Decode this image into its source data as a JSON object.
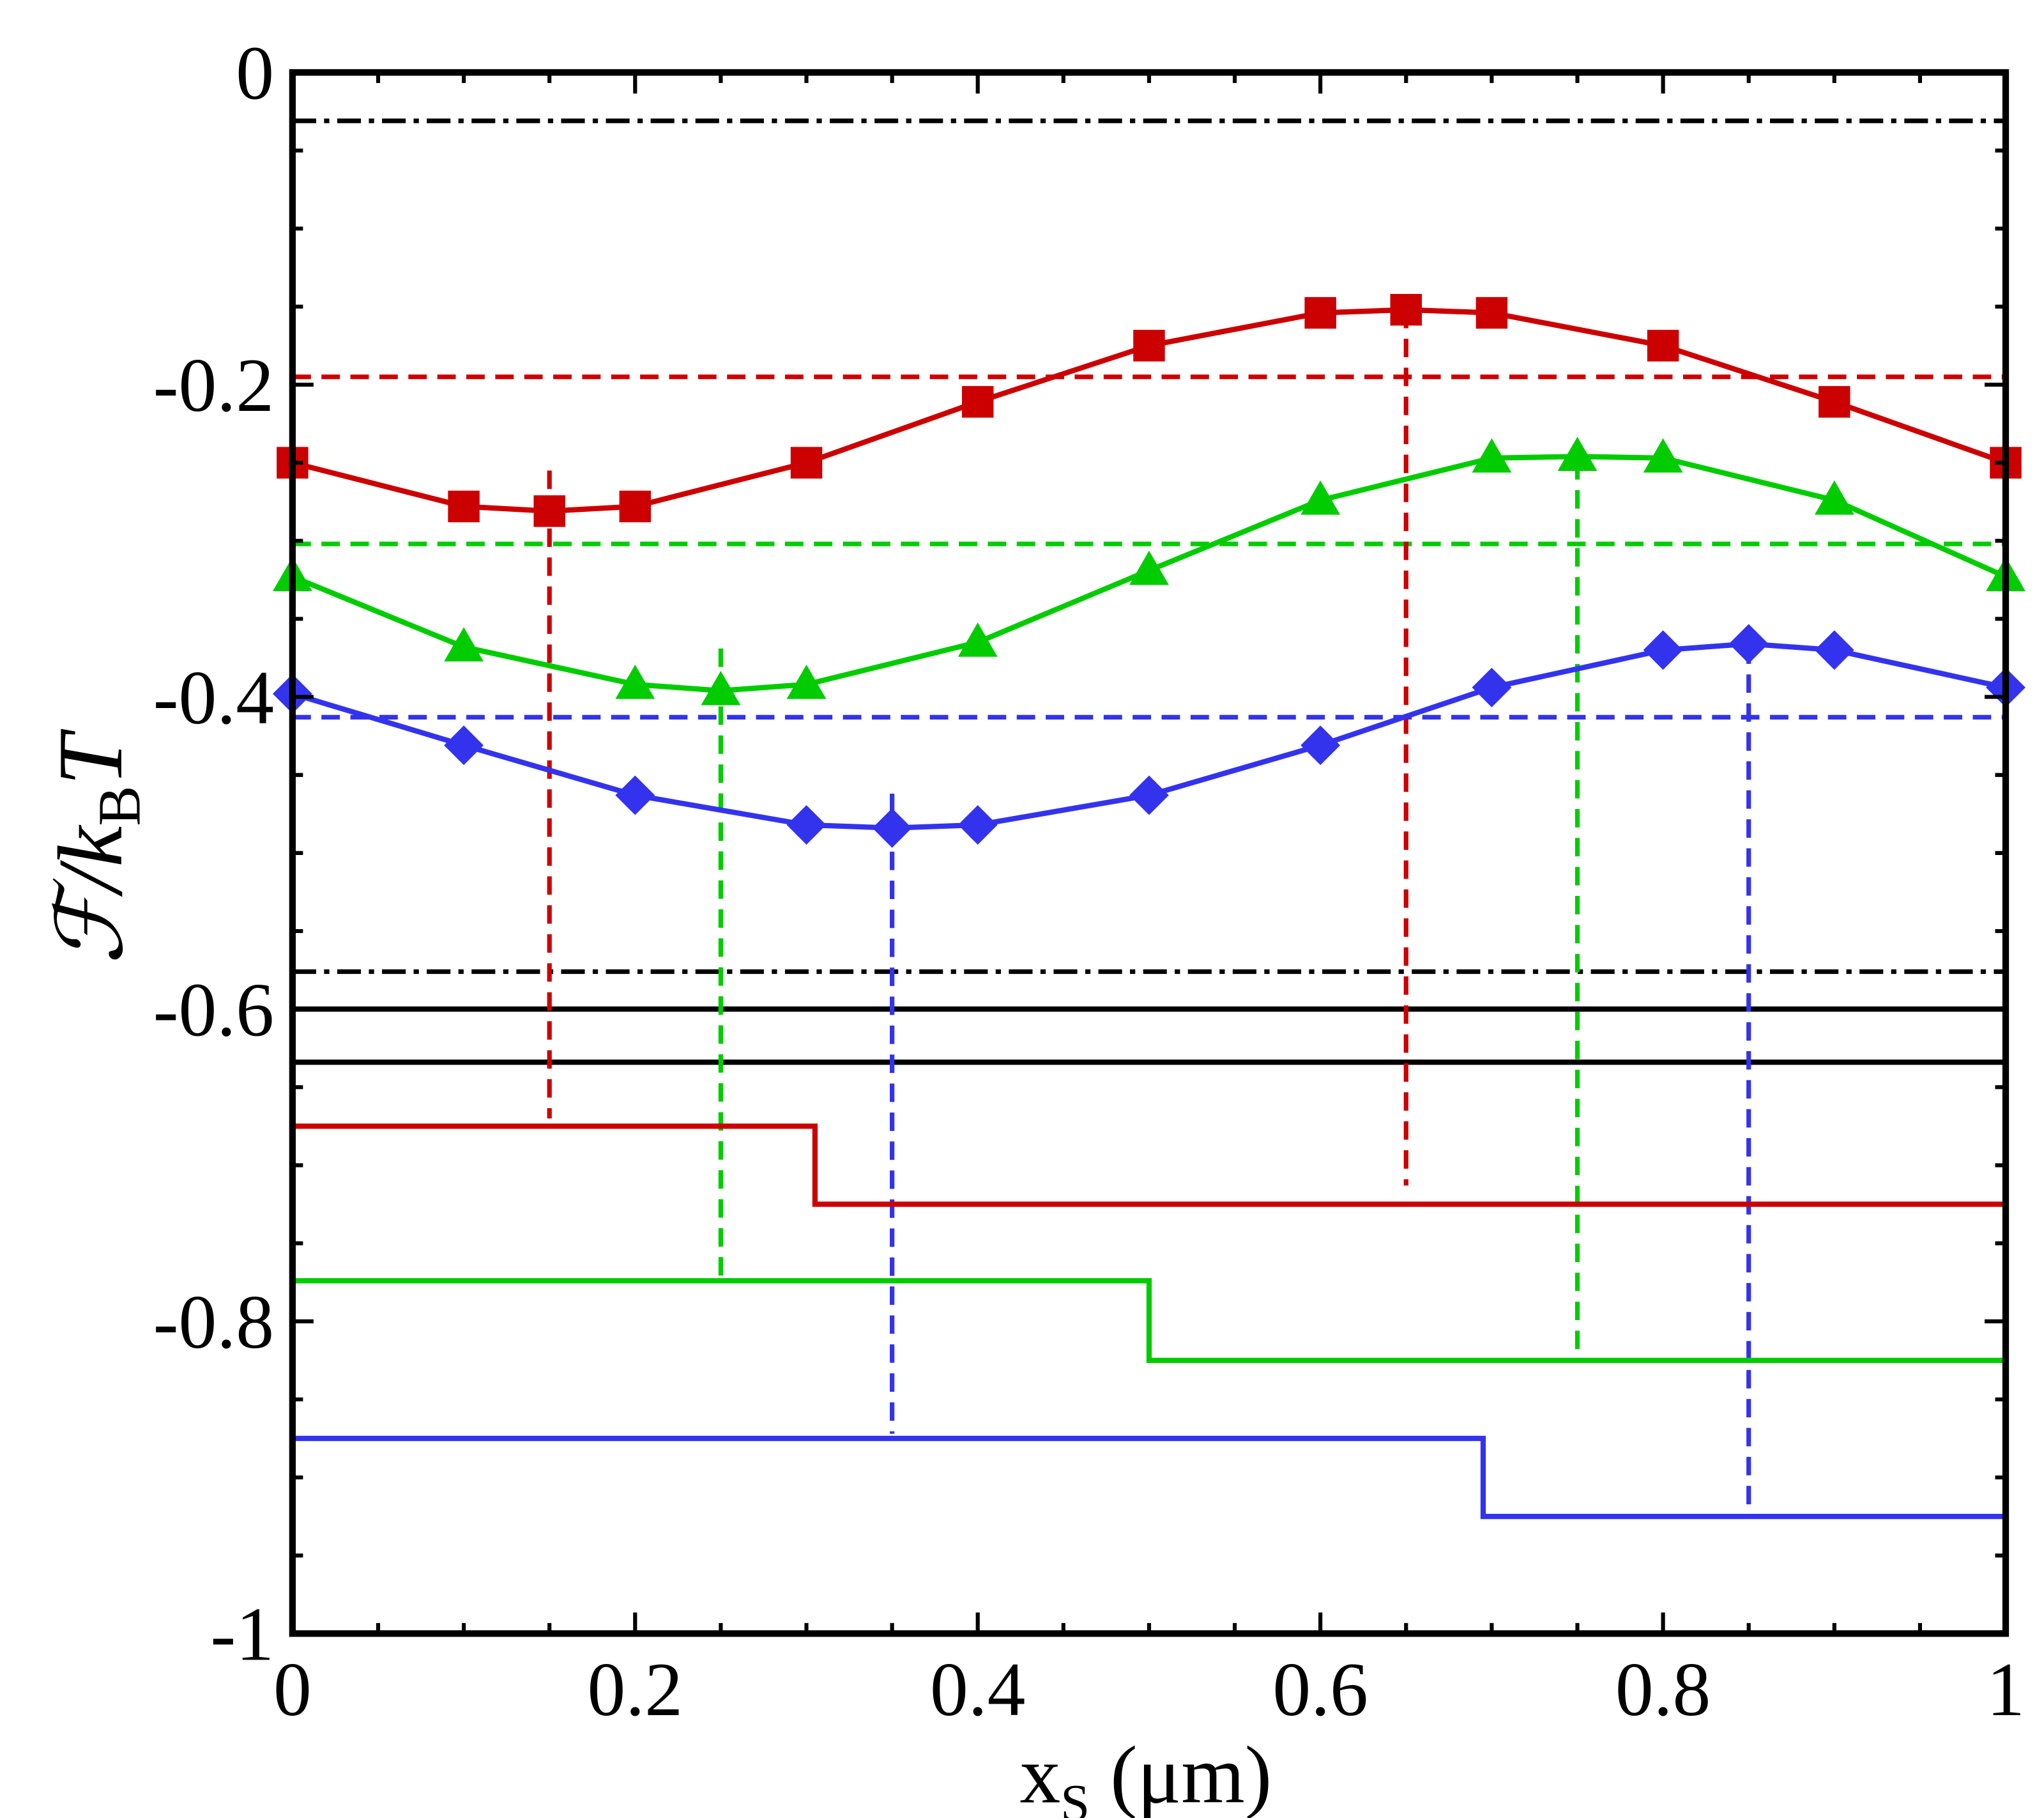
{
  "chart_data": {
    "type": "line",
    "xlabel": {
      "main": "x",
      "sub": "S",
      "tail": " (μm)"
    },
    "ylabel": {
      "main": "ℱ/k",
      "sub": "B",
      "tail": "T"
    },
    "xlim": [
      0,
      1
    ],
    "ylim": [
      -1,
      0
    ],
    "xticks": [
      0,
      0.2,
      0.4,
      0.6,
      0.8,
      1
    ],
    "yticks": [
      -1,
      -0.8,
      -0.6,
      -0.4,
      -0.2,
      0
    ],
    "xticks_minor": [
      0.05,
      0.1,
      0.15,
      0.25,
      0.3,
      0.35,
      0.45,
      0.5,
      0.55,
      0.65,
      0.7,
      0.75,
      0.85,
      0.9,
      0.95
    ],
    "yticks_minor": [
      -0.95,
      -0.9,
      -0.85,
      -0.75,
      -0.7,
      -0.65,
      -0.55,
      -0.5,
      -0.45,
      -0.35,
      -0.3,
      -0.25,
      -0.15,
      -0.1,
      -0.05
    ],
    "series": [
      {
        "color": "#cc0000",
        "marker": "square",
        "x": [
          0,
          0.1,
          0.15,
          0.2,
          0.3,
          0.4,
          0.5,
          0.6,
          0.65,
          0.7,
          0.8,
          0.9,
          1
        ],
        "values": [
          -0.25,
          -0.278,
          -0.281,
          -0.278,
          -0.25,
          -0.211,
          -0.175,
          -0.154,
          -0.152,
          -0.154,
          -0.175,
          -0.211,
          -0.25
        ]
      },
      {
        "color": "#00cc00",
        "marker": "triangle",
        "x": [
          0,
          0.1,
          0.2,
          0.25,
          0.3,
          0.4,
          0.5,
          0.6,
          0.7,
          0.75,
          0.8,
          0.9,
          1
        ],
        "values": [
          -0.323,
          -0.368,
          -0.392,
          -0.396,
          -0.392,
          -0.365,
          -0.319,
          -0.274,
          -0.247,
          -0.246,
          -0.247,
          -0.274,
          -0.323
        ]
      },
      {
        "color": "#3333ee",
        "marker": "diamond",
        "x": [
          0,
          0.1,
          0.2,
          0.3,
          0.35,
          0.4,
          0.5,
          0.6,
          0.7,
          0.8,
          0.85,
          0.9,
          1
        ],
        "values": [
          -0.398,
          -0.431,
          -0.463,
          -0.482,
          -0.484,
          -0.482,
          -0.463,
          -0.431,
          -0.394,
          -0.37,
          -0.366,
          -0.37,
          -0.394
        ]
      },
      {
        "color": "#cc0000",
        "step": true,
        "x": [
          0,
          0.305,
          1
        ],
        "values": [
          -0.675,
          -0.725,
          -0.725
        ]
      },
      {
        "color": "#00cc00",
        "step": true,
        "x": [
          0,
          0.5,
          1
        ],
        "values": [
          -0.774,
          -0.825,
          -0.825
        ]
      },
      {
        "color": "#3333ee",
        "step": true,
        "x": [
          0,
          0.695,
          1
        ],
        "values": [
          -0.875,
          -0.925,
          -0.925
        ]
      }
    ],
    "hlines": [
      {
        "y": -0.031,
        "color": "#000000",
        "style": "dashdot"
      },
      {
        "y": -0.576,
        "color": "#000000",
        "style": "dashdot"
      },
      {
        "y": -0.6,
        "color": "#000000",
        "style": "solid"
      },
      {
        "y": -0.634,
        "color": "#000000",
        "style": "solid"
      },
      {
        "y": -0.195,
        "color": "#cc0000",
        "style": "dashed"
      },
      {
        "y": -0.302,
        "color": "#00cc00",
        "style": "dashed"
      },
      {
        "y": -0.413,
        "color": "#3333ee",
        "style": "dashed"
      }
    ],
    "vlines": [
      {
        "x": 0.15,
        "y": [
          -0.255,
          -0.67
        ],
        "color": "#cc0000"
      },
      {
        "x": 0.65,
        "y": [
          -0.152,
          -0.713
        ],
        "color": "#cc0000"
      },
      {
        "x": 0.25,
        "y": [
          -0.369,
          -0.772
        ],
        "color": "#00cc00"
      },
      {
        "x": 0.75,
        "y": [
          -0.249,
          -0.823
        ],
        "color": "#00cc00"
      },
      {
        "x": 0.35,
        "y": [
          -0.462,
          -0.872
        ],
        "color": "#3333ee"
      },
      {
        "x": 0.85,
        "y": [
          -0.367,
          -0.924
        ],
        "color": "#3333ee"
      }
    ]
  }
}
